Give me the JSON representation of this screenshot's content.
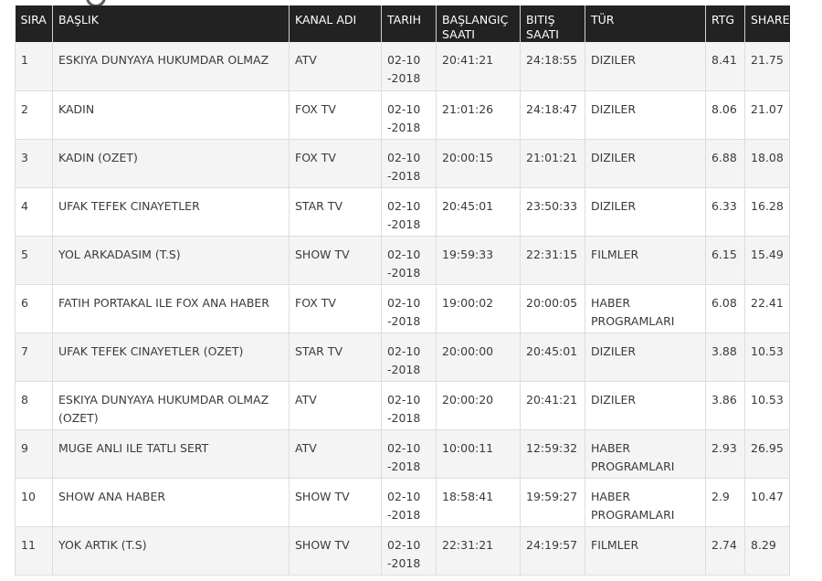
{
  "table": {
    "headers": {
      "sira": "SIRA",
      "baslik": "BAŞLIK",
      "kanal": "KANAL ADI",
      "tarih": "TARIH",
      "baslangic": "BAŞLANGIÇ SAATI",
      "bitis": "BITIŞ SAATI",
      "tur": "TÜR",
      "rtg": "RTG",
      "share": "SHARE"
    },
    "rows": [
      {
        "sira": "1",
        "baslik": "ESKIYA DUNYAYA HUKUMDAR OLMAZ",
        "kanal": "ATV",
        "tarih": "02-10-2018",
        "baslangic": "20:41:21",
        "bitis": "24:18:55",
        "tur": "DIZILER",
        "rtg": "8.41",
        "share": "21.75"
      },
      {
        "sira": "2",
        "baslik": "KADIN",
        "kanal": "FOX TV",
        "tarih": "02-10-2018",
        "baslangic": "21:01:26",
        "bitis": "24:18:47",
        "tur": "DIZILER",
        "rtg": "8.06",
        "share": "21.07"
      },
      {
        "sira": "3",
        "baslik": "KADIN (OZET)",
        "kanal": "FOX TV",
        "tarih": "02-10-2018",
        "baslangic": "20:00:15",
        "bitis": "21:01:21",
        "tur": "DIZILER",
        "rtg": "6.88",
        "share": "18.08"
      },
      {
        "sira": "4",
        "baslik": "UFAK TEFEK CINAYETLER",
        "kanal": "STAR TV",
        "tarih": "02-10-2018",
        "baslangic": "20:45:01",
        "bitis": "23:50:33",
        "tur": "DIZILER",
        "rtg": "6.33",
        "share": "16.28"
      },
      {
        "sira": "5",
        "baslik": "YOL ARKADASIM (T.S)",
        "kanal": "SHOW TV",
        "tarih": "02-10-2018",
        "baslangic": "19:59:33",
        "bitis": "22:31:15",
        "tur": "FILMLER",
        "rtg": "6.15",
        "share": "15.49"
      },
      {
        "sira": "6",
        "baslik": "FATIH PORTAKAL ILE FOX ANA HABER",
        "kanal": "FOX TV",
        "tarih": "02-10-2018",
        "baslangic": "19:00:02",
        "bitis": "20:00:05",
        "tur": "HABER PROGRAMLARI",
        "rtg": "6.08",
        "share": "22.41"
      },
      {
        "sira": "7",
        "baslik": "UFAK TEFEK CINAYETLER (OZET)",
        "kanal": "STAR TV",
        "tarih": "02-10-2018",
        "baslangic": "20:00:00",
        "bitis": "20:45:01",
        "tur": "DIZILER",
        "rtg": "3.88",
        "share": "10.53"
      },
      {
        "sira": "8",
        "baslik": "ESKIYA DUNYAYA HUKUMDAR OLMAZ (OZET)",
        "kanal": "ATV",
        "tarih": "02-10-2018",
        "baslangic": "20:00:20",
        "bitis": "20:41:21",
        "tur": "DIZILER",
        "rtg": "3.86",
        "share": "10.53"
      },
      {
        "sira": "9",
        "baslik": "MUGE ANLI ILE TATLI SERT",
        "kanal": "ATV",
        "tarih": "02-10-2018",
        "baslangic": "10:00:11",
        "bitis": "12:59:32",
        "tur": "HABER PROGRAMLARI",
        "rtg": "2.93",
        "share": "26.95"
      },
      {
        "sira": "10",
        "baslik": "SHOW ANA HABER",
        "kanal": "SHOW TV",
        "tarih": "02-10-2018",
        "baslangic": "18:58:41",
        "bitis": "19:59:27",
        "tur": "HABER PROGRAMLARI",
        "rtg": "2.9",
        "share": "10.47"
      },
      {
        "sira": "11",
        "baslik": "YOK ARTIK (T.S)",
        "kanal": "SHOW TV",
        "tarih": "02-10-2018",
        "baslangic": "22:31:21",
        "bitis": "24:19:57",
        "tur": "FILMLER",
        "rtg": "2.74",
        "share": "8.29"
      }
    ]
  }
}
